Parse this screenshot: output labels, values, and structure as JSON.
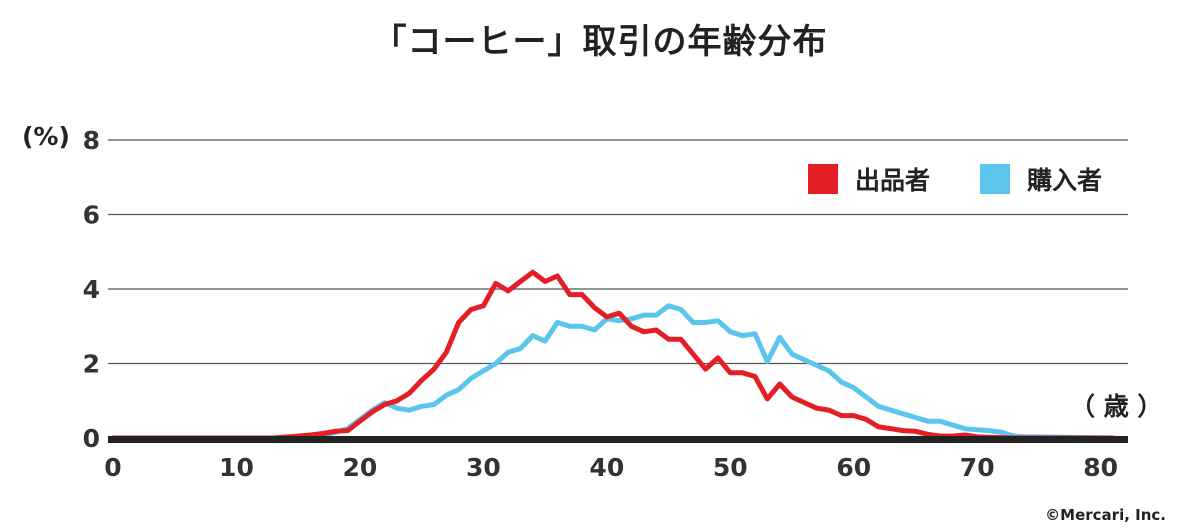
{
  "chart_data": {
    "type": "line",
    "title": "「コーヒー」取引の年齢分布",
    "ylabel": "(%)",
    "xlabel": "（ 歳 ）",
    "xlim": [
      0,
      81
    ],
    "ylim": [
      0,
      8
    ],
    "xticks": [
      0,
      10,
      20,
      30,
      40,
      50,
      60,
      70,
      80
    ],
    "yticks": [
      0,
      2,
      4,
      6,
      8
    ],
    "grid": true,
    "legend_position": "top-right",
    "series": [
      {
        "name": "出品者",
        "color": "#e31e24",
        "x": [
          0,
          5,
          10,
          13,
          15,
          16,
          17,
          18,
          19,
          20,
          21,
          22,
          23,
          24,
          25,
          26,
          27,
          28,
          29,
          30,
          31,
          32,
          33,
          34,
          35,
          36,
          37,
          38,
          39,
          40,
          41,
          42,
          43,
          44,
          45,
          46,
          47,
          48,
          49,
          50,
          51,
          52,
          53,
          54,
          55,
          56,
          57,
          58,
          59,
          60,
          61,
          62,
          63,
          64,
          65,
          66,
          67,
          68,
          69,
          70,
          71,
          72,
          73,
          75,
          78,
          81
        ],
        "y": [
          0,
          0,
          0,
          0,
          0.05,
          0.08,
          0.12,
          0.18,
          0.2,
          0.45,
          0.7,
          0.9,
          1.0,
          1.2,
          1.55,
          1.85,
          2.3,
          3.1,
          3.45,
          3.55,
          4.15,
          3.95,
          4.2,
          4.45,
          4.2,
          4.35,
          3.85,
          3.85,
          3.5,
          3.25,
          3.35,
          3.0,
          2.85,
          2.9,
          2.65,
          2.65,
          2.25,
          1.85,
          2.15,
          1.75,
          1.75,
          1.65,
          1.05,
          1.45,
          1.1,
          0.95,
          0.8,
          0.75,
          0.6,
          0.6,
          0.5,
          0.3,
          0.25,
          0.2,
          0.18,
          0.1,
          0.05,
          0.05,
          0.08,
          0.03,
          0.02,
          0.01,
          0,
          0,
          0,
          0
        ]
      },
      {
        "name": "購入者",
        "color": "#5bc5ee",
        "x": [
          0,
          5,
          10,
          14,
          16,
          17,
          18,
          19,
          20,
          21,
          22,
          23,
          24,
          25,
          26,
          27,
          28,
          29,
          30,
          31,
          32,
          33,
          34,
          35,
          36,
          37,
          38,
          39,
          40,
          41,
          42,
          43,
          44,
          45,
          46,
          47,
          48,
          49,
          50,
          51,
          52,
          53,
          54,
          55,
          56,
          57,
          58,
          59,
          60,
          61,
          62,
          63,
          64,
          65,
          66,
          67,
          68,
          69,
          70,
          71,
          72,
          73,
          74,
          75,
          77,
          79,
          81
        ],
        "y": [
          0,
          0,
          0,
          0,
          0.02,
          0.08,
          0.15,
          0.25,
          0.5,
          0.75,
          0.95,
          0.8,
          0.75,
          0.85,
          0.9,
          1.15,
          1.3,
          1.6,
          1.8,
          2.0,
          2.3,
          2.4,
          2.75,
          2.6,
          3.1,
          3.0,
          3.0,
          2.9,
          3.2,
          3.15,
          3.2,
          3.3,
          3.3,
          3.55,
          3.45,
          3.1,
          3.1,
          3.15,
          2.85,
          2.75,
          2.8,
          2.05,
          2.7,
          2.25,
          2.1,
          1.95,
          1.8,
          1.5,
          1.35,
          1.1,
          0.85,
          0.75,
          0.65,
          0.55,
          0.45,
          0.45,
          0.35,
          0.25,
          0.22,
          0.2,
          0.15,
          0.05,
          0.03,
          0.03,
          0.02,
          0.01,
          0
        ]
      }
    ]
  },
  "footer": {
    "copyright": "©Mercari, Inc."
  }
}
